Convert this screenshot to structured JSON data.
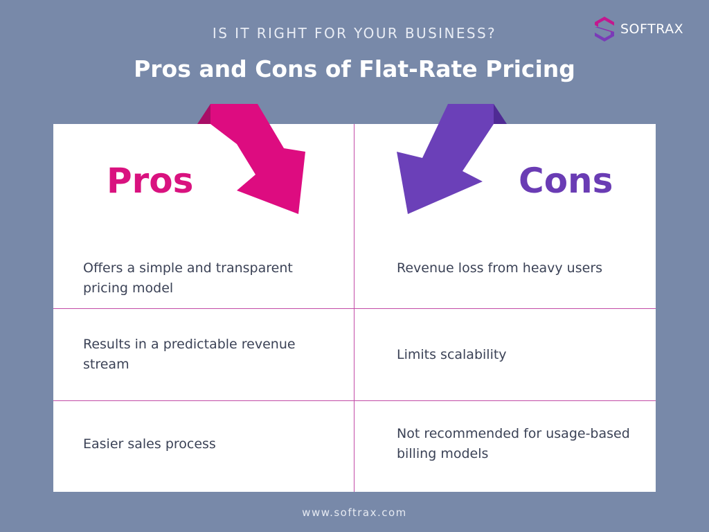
{
  "header": {
    "eyebrow": "IS IT RIGHT FOR YOUR BUSINESS?",
    "title": "Pros and Cons of Flat-Rate Pricing"
  },
  "brand": {
    "name": "SOFTRAX",
    "logo_icon": "softrax-s-logo-icon"
  },
  "table": {
    "pros_heading": "Pros",
    "cons_heading": "Cons",
    "rows": [
      {
        "pro": "Offers a simple and transparent pricing model",
        "con": "Revenue loss from heavy users"
      },
      {
        "pro": "Results in a predictable revenue stream",
        "con": "Limits scalability"
      },
      {
        "pro": "Easier sales process",
        "con": "Not recommended for usage-based billing models"
      }
    ]
  },
  "footer": {
    "url": "www.softrax.com"
  },
  "colors": {
    "background": "#7889a9",
    "pros_accent": "#d9127f",
    "cons_accent": "#6a3cb4",
    "divider": "#c24aa6",
    "body_text": "#3b4256"
  }
}
